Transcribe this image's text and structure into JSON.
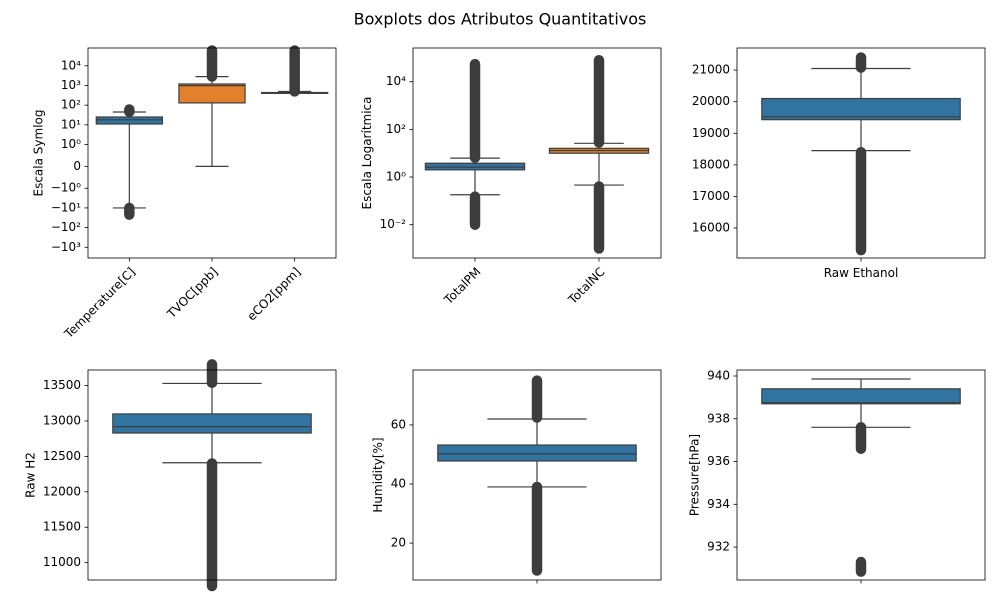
{
  "title": "Boxplots dos Atributos Quantitativos",
  "chart_data": [
    {
      "type": "box",
      "ylabel": "Escala Symlog",
      "yscale": "symlog",
      "linthresh": 1,
      "ylim": [
        -3500,
        80000
      ],
      "yticks": [
        {
          "value": -1000,
          "label": "−10³"
        },
        {
          "value": -100,
          "label": "−10²"
        },
        {
          "value": -10,
          "label": "−10¹"
        },
        {
          "value": -1,
          "label": "−10⁰"
        },
        0,
        {
          "value": 1,
          "label": "10⁰"
        },
        {
          "value": 10,
          "label": "10¹"
        },
        {
          "value": 100,
          "label": "10²"
        },
        {
          "value": 1000,
          "label": "10³"
        },
        {
          "value": 10000,
          "label": "10⁴"
        }
      ],
      "categories": [
        "Temperature[C]",
        "TVOC[ppb]",
        "eCO2[ppm]"
      ],
      "label_rotation": 45,
      "boxes": [
        {
          "color": "#3274a1",
          "whislo": -10,
          "q1": 11,
          "med": 18,
          "q3": 25,
          "whishi": 45,
          "outliers": [
            [
              -22,
              -10
            ],
            [
              46,
              60
            ]
          ]
        },
        {
          "color": "#e1812c",
          "whislo": 0,
          "q1": 130,
          "med": 981,
          "q3": 1190,
          "whishi": 2800,
          "outliers": [
            [
              2850,
              60000
            ]
          ]
        },
        {
          "color": "#3a923a",
          "whislo": 400,
          "q1": 400,
          "med": 400,
          "q3": 438,
          "whishi": 495,
          "outliers": [
            [
              500,
              60000
            ]
          ]
        }
      ]
    },
    {
      "type": "box",
      "ylabel": "Escala Logarítmica",
      "yscale": "log",
      "ylim": [
        0.0004,
        260000
      ],
      "yticks": [
        {
          "value": 0.01,
          "label": "10⁻²"
        },
        {
          "value": 1,
          "label": "10⁰"
        },
        {
          "value": 100,
          "label": "10²"
        },
        {
          "value": 10000,
          "label": "10⁴"
        }
      ],
      "categories": [
        "TotalPM",
        "TotalNC"
      ],
      "label_rotation": 45,
      "boxes": [
        {
          "color": "#3274a1",
          "whislo": 0.18,
          "q1": 2.0,
          "med": 2.6,
          "q3": 3.8,
          "whishi": 6.2,
          "outliers": [
            [
              0.01,
              0.15
            ],
            [
              6.5,
              55000
            ]
          ]
        },
        {
          "color": "#e1812c",
          "whislo": 0.46,
          "q1": 10,
          "med": 13,
          "q3": 16,
          "whishi": 26,
          "outliers": [
            [
              0.001,
              0.4
            ],
            [
              28,
              80000
            ]
          ]
        }
      ]
    },
    {
      "type": "box",
      "yscale": "linear",
      "ylim": [
        15050,
        21700
      ],
      "yticks": [
        16000,
        17000,
        18000,
        19000,
        20000,
        21000
      ],
      "categories": [
        "Raw Ethanol"
      ],
      "boxes": [
        {
          "color": "#3274a1",
          "whislo": 18450,
          "q1": 19430,
          "med": 19520,
          "q3": 20100,
          "whishi": 21050,
          "outliers": [
            [
              15300,
              18400
            ],
            [
              21080,
              21400
            ]
          ]
        }
      ]
    },
    {
      "type": "box",
      "ylabel": "Raw H2",
      "yscale": "linear",
      "ylim": [
        10755,
        13720
      ],
      "yticks": [
        11000,
        11500,
        12000,
        12500,
        13000,
        13500
      ],
      "categories": [
        null
      ],
      "boxes": [
        {
          "color": "#3274a1",
          "whislo": 12410,
          "q1": 12830,
          "med": 12920,
          "q3": 13100,
          "whishi": 13530,
          "outliers": [
            [
              10670,
              12400
            ],
            [
              13540,
              13800
            ]
          ]
        }
      ]
    },
    {
      "type": "box",
      "ylabel": "Humidity[%]",
      "yscale": "linear",
      "ylim": [
        7.5,
        78.6
      ],
      "yticks": [
        20,
        40,
        60
      ],
      "categories": [
        null
      ],
      "boxes": [
        {
          "color": "#3274a1",
          "whislo": 39,
          "q1": 47.8,
          "med": 50.2,
          "q3": 53.2,
          "whishi": 62,
          "outliers": [
            [
              10.7,
              39
            ],
            [
              62.5,
              75
            ]
          ]
        }
      ]
    },
    {
      "type": "box",
      "ylabel": "Pressure[hPa]",
      "yscale": "linear",
      "ylim": [
        930.46,
        940.28
      ],
      "yticks": [
        932,
        934,
        936,
        938,
        940
      ],
      "categories": [
        null
      ],
      "boxes": [
        {
          "color": "#3274a1",
          "whislo": 937.6,
          "q1": 938.7,
          "med": 938.75,
          "q3": 939.4,
          "whishi": 939.86,
          "outliers": [
            [
              930.85,
              931.3
            ],
            [
              936.6,
              937.6
            ]
          ]
        }
      ]
    }
  ]
}
